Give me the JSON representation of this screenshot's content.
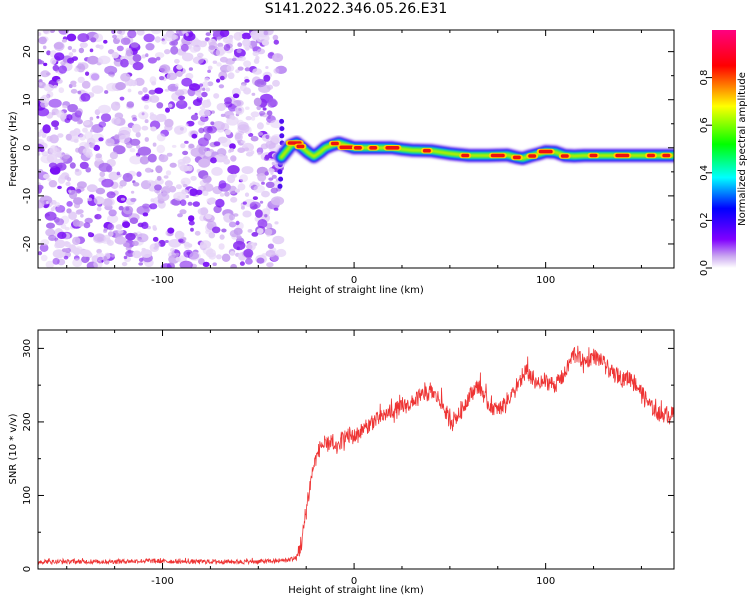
{
  "title": "S141.2022.346.05.26.E31",
  "chart_data": [
    {
      "type": "heatmap",
      "xlabel": "Height of straight line (km)",
      "ylabel": "Frequency (Hz)",
      "xlim": [
        -165,
        167
      ],
      "ylim": [
        -25,
        24.5
      ],
      "x_ticks": [
        -100,
        0,
        100
      ],
      "y_ticks": [
        -20,
        -10,
        0,
        10,
        20
      ],
      "colorbar": {
        "label": "Normalized spectral amplitude",
        "range": [
          0,
          1
        ],
        "ticks": [
          "0.0",
          "0.2",
          "0.4",
          "0.6",
          "0.8"
        ],
        "colors": [
          "#ffffff",
          "#c9a6f0",
          "#8000ff",
          "#0000ff",
          "#00ffff",
          "#00ff00",
          "#ffff00",
          "#ff0000",
          "#ff0080"
        ]
      },
      "noise_region_x": [
        -165,
        -38
      ],
      "signal_ridge": {
        "x": [
          -38,
          -33,
          -30,
          -27,
          -24,
          -21,
          -18,
          -15,
          -12,
          -8,
          -4,
          0,
          5,
          10,
          15,
          20,
          25,
          30,
          40,
          50,
          60,
          70,
          80,
          85,
          88,
          92,
          96,
          100,
          105,
          110,
          115,
          120,
          130,
          140,
          150,
          160,
          167
        ],
        "frequency": [
          -2,
          0.5,
          1,
          0,
          -1,
          -1.8,
          -1,
          0,
          0.5,
          1,
          0.5,
          0,
          0,
          0,
          0,
          0,
          -0.3,
          -0.5,
          -0.6,
          -1.2,
          -1.6,
          -1.6,
          -1.5,
          -2,
          -2.2,
          -1.7,
          -1.3,
          -0.8,
          -0.9,
          -1.6,
          -1.7,
          -1.6,
          -1.6,
          -1.6,
          -1.6,
          -1.6,
          -1.6
        ]
      }
    },
    {
      "type": "line",
      "xlabel": "Height of straight line (km)",
      "ylabel": "SNR (10 * v/v)",
      "xlim": [
        -165,
        167
      ],
      "ylim": [
        0,
        325
      ],
      "x_ticks": [
        -100,
        0,
        100
      ],
      "y_ticks": [
        0,
        100,
        200,
        300
      ],
      "series": [
        {
          "color": "#ee3333",
          "x": [
            -165,
            -150,
            -130,
            -110,
            -90,
            -70,
            -50,
            -40,
            -35,
            -30,
            -27,
            -25,
            -22,
            -20,
            -17,
            -15,
            -12,
            -10,
            -5,
            0,
            5,
            10,
            20,
            30,
            35,
            40,
            45,
            50,
            55,
            60,
            65,
            70,
            75,
            80,
            85,
            90,
            95,
            100,
            105,
            110,
            115,
            120,
            125,
            130,
            135,
            140,
            145,
            150,
            155,
            160,
            167
          ],
          "values": [
            10,
            10,
            10,
            11,
            10,
            10,
            10,
            11,
            12,
            15,
            40,
            80,
            130,
            150,
            170,
            165,
            175,
            160,
            180,
            180,
            190,
            200,
            215,
            225,
            235,
            240,
            230,
            200,
            210,
            235,
            250,
            225,
            215,
            230,
            245,
            270,
            250,
            255,
            250,
            265,
            295,
            280,
            290,
            280,
            265,
            260,
            260,
            240,
            220,
            210,
            210
          ]
        }
      ]
    }
  ]
}
